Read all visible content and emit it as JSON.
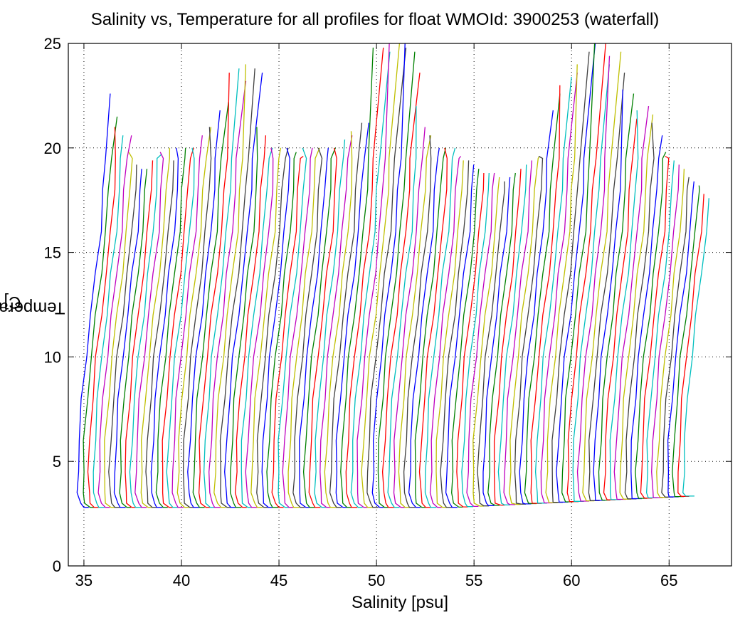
{
  "chart_data": {
    "type": "line",
    "title": "Salinity vs, Temperature for all profiles for float WMOId: 3900253 (waterfall)",
    "xlabel": "Salinity [psu]",
    "ylabel_main": "Temperature [",
    "ylabel_sup": "o",
    "ylabel_end": "C]",
    "xlim": [
      34.2,
      68.2
    ],
    "ylim": [
      0,
      25
    ],
    "xticks": [
      35,
      40,
      45,
      50,
      55,
      60,
      65
    ],
    "yticks": [
      0,
      5,
      10,
      15,
      20,
      25
    ],
    "grid": true,
    "series_colors": [
      "#0000ff",
      "#008000",
      "#ff0000",
      "#00bfbf",
      "#bf00bf",
      "#bfbf00",
      "#404040"
    ],
    "profile_count": 116,
    "profile_start_salinity": 35.0,
    "profile_spacing": 0.27,
    "profile_shape_points": [
      {
        "t": 2.8,
        "ds": 0.0
      },
      {
        "t": 3.0,
        "ds": -0.2
      },
      {
        "t": 3.5,
        "ds": -0.3
      },
      {
        "t": 4.5,
        "ds": -0.3
      },
      {
        "t": 6.0,
        "ds": -0.25
      },
      {
        "t": 8.0,
        "ds": -0.1
      },
      {
        "t": 10.0,
        "ds": 0.1
      },
      {
        "t": 12.0,
        "ds": 0.35
      },
      {
        "t": 14.0,
        "ds": 0.6
      },
      {
        "t": 16.0,
        "ds": 0.85
      },
      {
        "t": 18.0,
        "ds": 1.0
      },
      {
        "t": 19.5,
        "ds": 1.1
      }
    ],
    "profile_top_temperatures": [
      22.6,
      21.5,
      21.0,
      20.6,
      20.6,
      19.8,
      19.2,
      19.0,
      19.0,
      19.4,
      19.7,
      19.8,
      20.0,
      19.4,
      20.0,
      20.0,
      20.0,
      20.0,
      20.6,
      21.0,
      21.0,
      21.8,
      22.2,
      23.6,
      23.8,
      23.2,
      24.0,
      23.8,
      23.6,
      21.0,
      20.6,
      20.0,
      20.0,
      20.0,
      20.0,
      20.0,
      19.8,
      19.6,
      20.0,
      20.0,
      20.0,
      20.0,
      20.0,
      20.0,
      20.0,
      20.4,
      20.6,
      20.8,
      21.2,
      21.2,
      24.8,
      24.8,
      24.6,
      25.0,
      25.0,
      24.8,
      25.0,
      24.6,
      23.6,
      22.0,
      21.0,
      20.6,
      20.6,
      20.0,
      20.0,
      20.0,
      20.0,
      19.6,
      19.4,
      19.4,
      19.2,
      19.0,
      18.8,
      18.8,
      18.8,
      18.6,
      18.4,
      18.6,
      18.8,
      19.0,
      19.2,
      19.4,
      19.6,
      19.6,
      21.8,
      22.6,
      23.0,
      23.4,
      23.6,
      24.0,
      24.6,
      25.0,
      25.0,
      25.0,
      24.0,
      24.4,
      24.6,
      23.6,
      22.8,
      22.6,
      21.4,
      21.8,
      22.0,
      21.6,
      21.2,
      20.6,
      19.8,
      19.6,
      19.4,
      19.2,
      19.0,
      18.6,
      18.4,
      18.2,
      17.8,
      17.6
    ]
  }
}
